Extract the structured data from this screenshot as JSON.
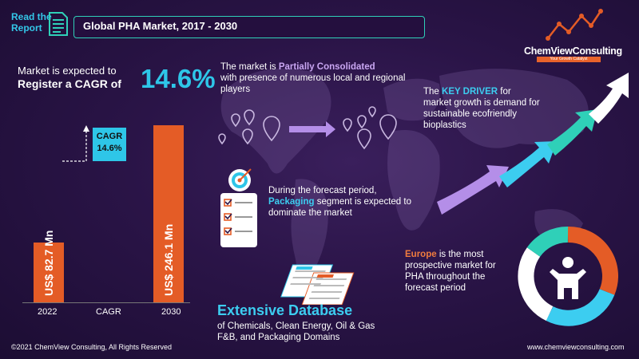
{
  "header": {
    "read_line1": "Read the",
    "read_line2": "Report",
    "title": "Global PHA Market, 2017 - 2030"
  },
  "logo": {
    "name": "ChemViewConsulting",
    "tagline": "Your Growth Catalyst"
  },
  "cagr_statement": {
    "line1": "Market is expected to",
    "line2": "Register a CAGR of",
    "value": "14.6%"
  },
  "chart_data": {
    "type": "bar",
    "categories": [
      "2022",
      "CAGR",
      "2030"
    ],
    "values": [
      82.7,
      null,
      246.1
    ],
    "bar_labels": [
      "US$ 82.7 Mn",
      "",
      "US$ 246.1 Mn"
    ],
    "cagr_box": {
      "label": "CAGR",
      "value": "14.6%"
    },
    "colors": {
      "bar": "#e45c26",
      "cagr_box": "#2ec6e8"
    },
    "title": "",
    "xlabel": "",
    "ylabel": ""
  },
  "consolidation": {
    "pre": "The market is ",
    "highlight": "Partially Consolidated",
    "post": "with presence of numerous local and regional players"
  },
  "key_driver": {
    "pre": "The ",
    "highlight": "KEY DRIVER",
    "post_1": " for",
    "post_2": "market growth is demand for sustainable ecofriendly bioplastics"
  },
  "packaging": {
    "pre": "During the forecast period,",
    "highlight": "Packaging",
    "post": " segment is expected to dominate the market"
  },
  "europe": {
    "highlight": "Europe",
    "post": " is the most prospective market for PHA throughout the forecast period"
  },
  "database": {
    "title": "Extensive Database",
    "subtitle": "of Chemicals, Clean Energy, Oil & Gas F&B, and Packaging Domains"
  },
  "footer": {
    "copyright": "©2021 ChemView Consulting, All Rights Reserved",
    "website": "www.chemviewconsulting.com"
  },
  "colors": {
    "accent_cyan": "#2ec6e8",
    "accent_orange": "#e45c26",
    "accent_purple": "#c9a6f2",
    "accent_teal": "#2fd0b8",
    "background": "#2a1447"
  }
}
